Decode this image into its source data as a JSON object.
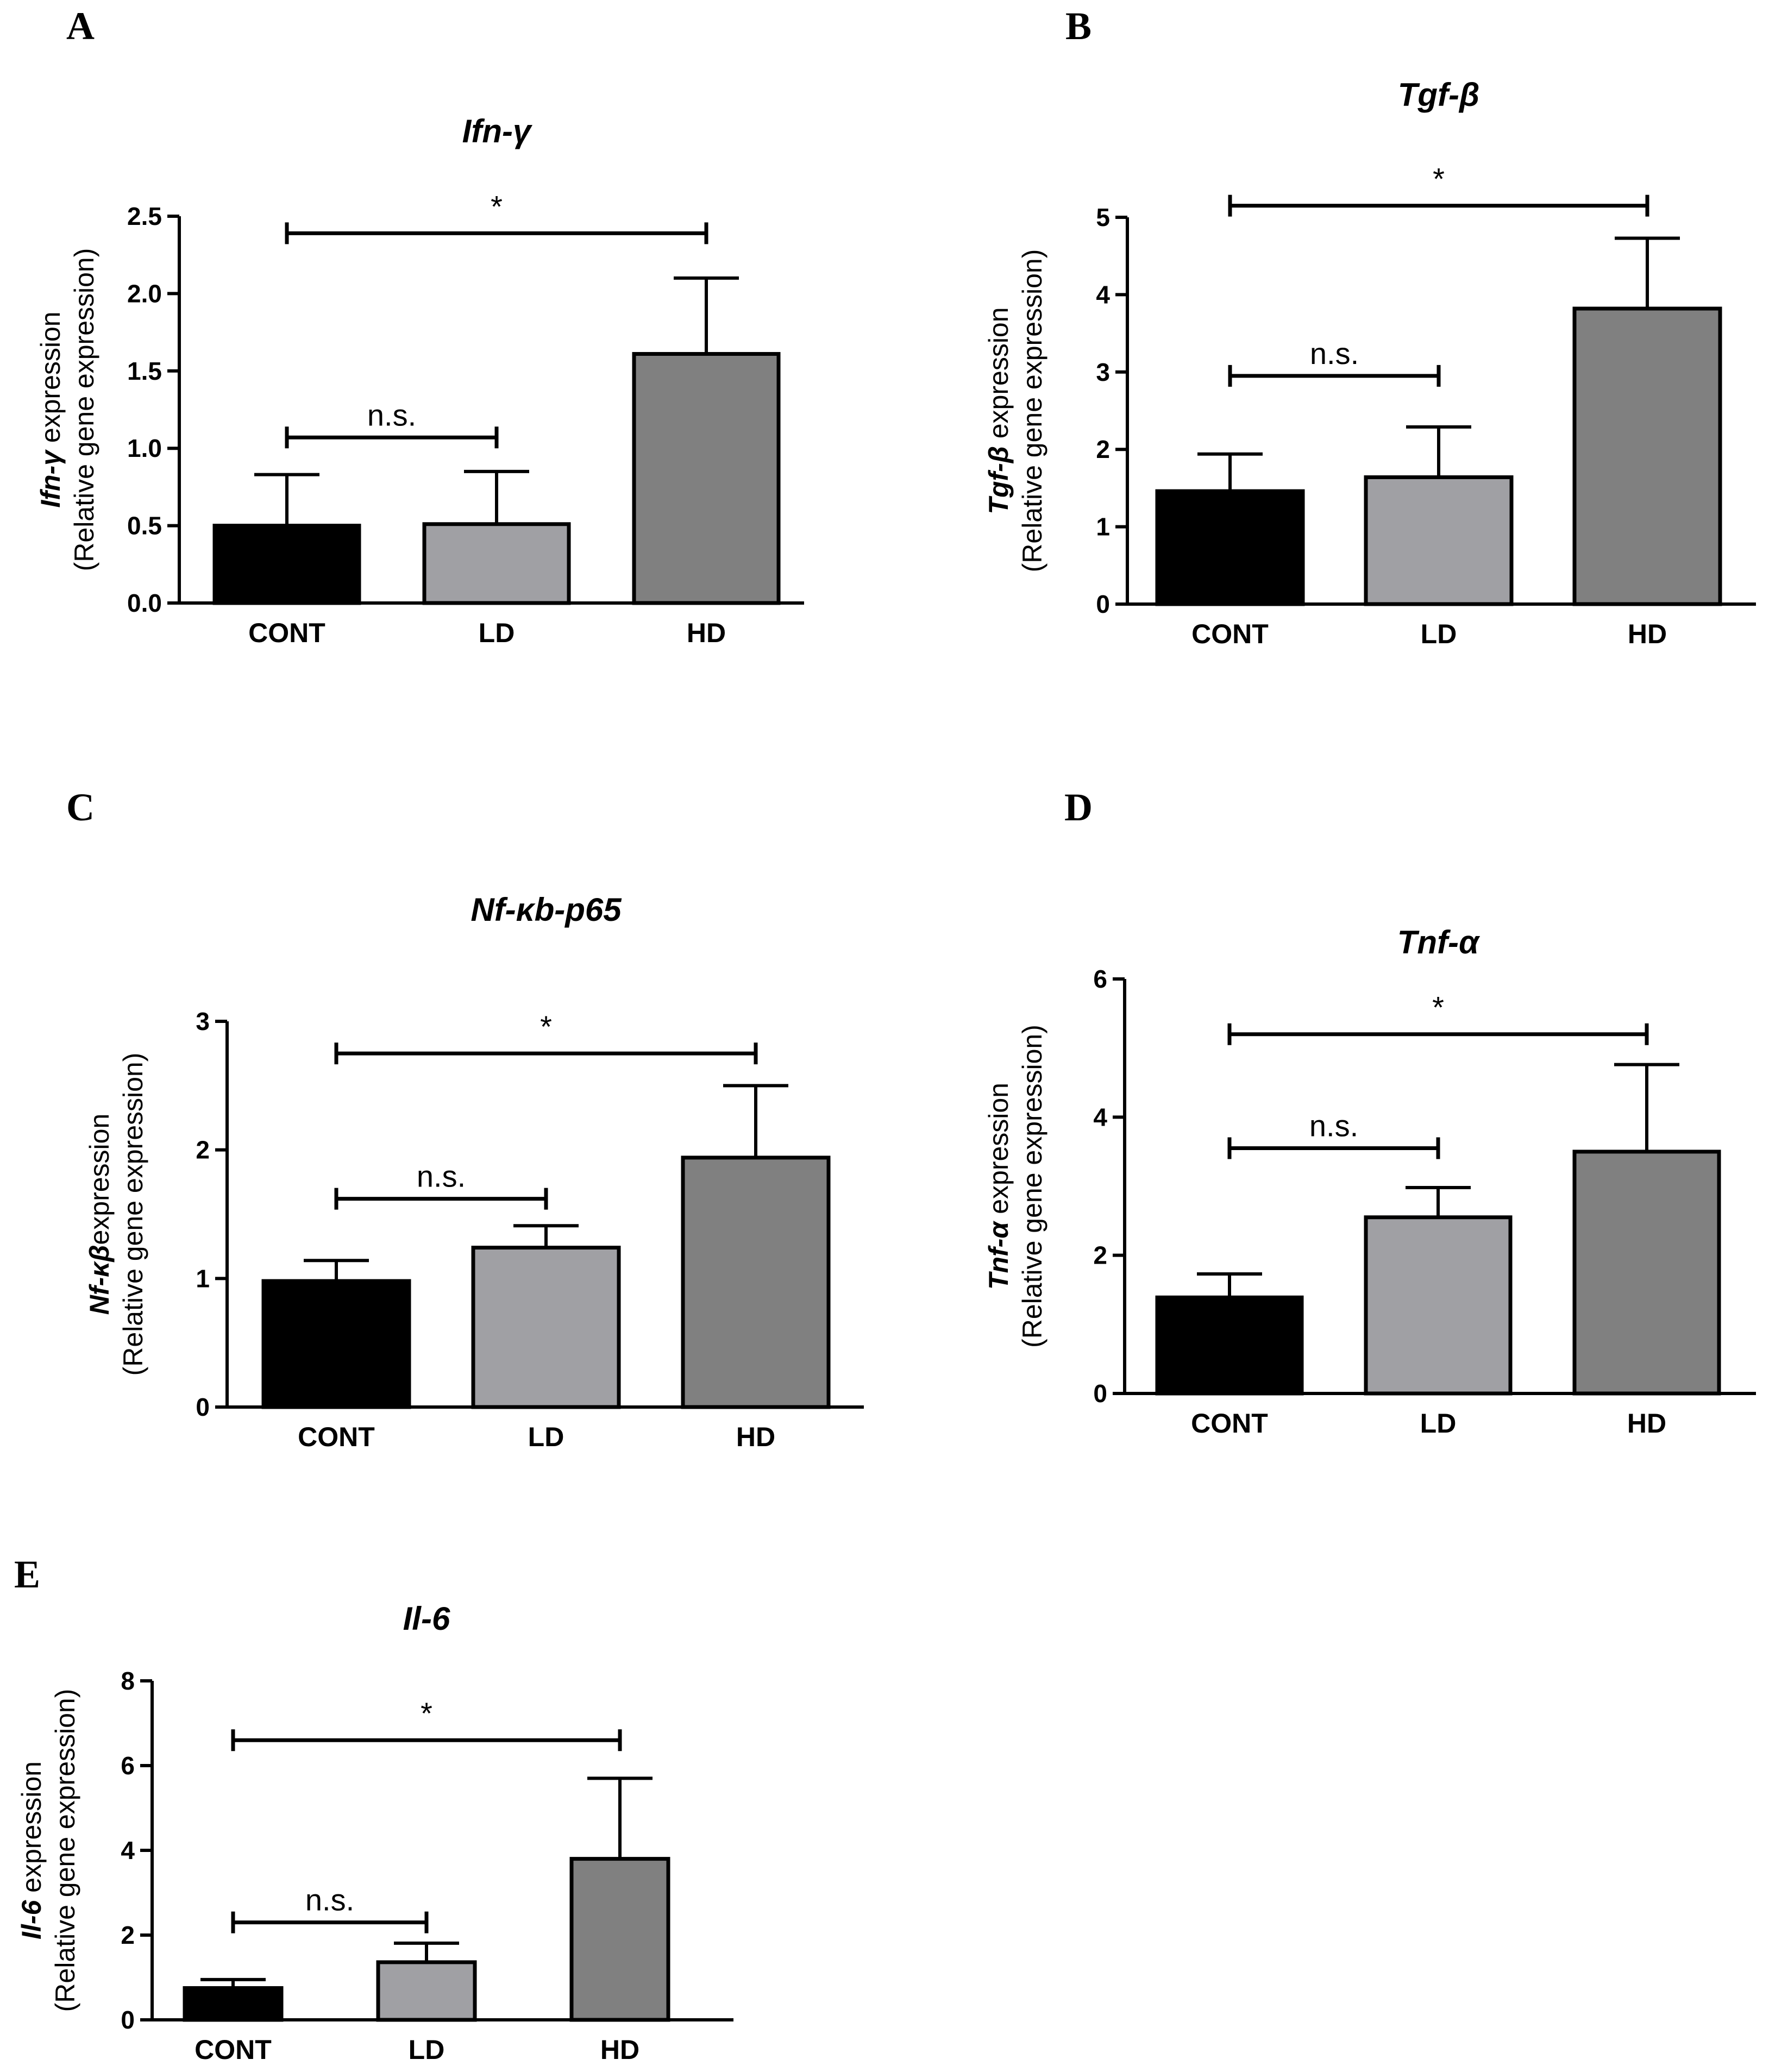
{
  "chart_data": [
    {
      "panel": "A",
      "type": "bar",
      "title": "Ifn-γ",
      "ylabel_gene": "Ifn-γ",
      "ylabel_suffix": " expression",
      "ylabel_line2": "(Relative gene expression)",
      "categories": [
        "CONT",
        "LD",
        "HD"
      ],
      "values": [
        0.5,
        0.51,
        1.61
      ],
      "errors": [
        0.33,
        0.34,
        0.49
      ],
      "ylim": [
        0,
        2.5
      ],
      "yticks": [
        "0.0",
        "0.5",
        "1.0",
        "1.5",
        "2.0",
        "2.5"
      ],
      "colors": [
        "#000000",
        "#a0a0a4",
        "#808080"
      ],
      "annotations": [
        {
          "label": "n.s.",
          "from": 0,
          "to": 1,
          "level": 1.07
        },
        {
          "label": "*",
          "from": 0,
          "to": 2,
          "level": 2.39
        }
      ]
    },
    {
      "panel": "B",
      "type": "bar",
      "title": "Tgf-β",
      "ylabel_gene": "Tgf-β",
      "ylabel_suffix": " expression",
      "ylabel_line2": "(Relative gene expression)",
      "categories": [
        "CONT",
        "LD",
        "HD"
      ],
      "values": [
        1.46,
        1.64,
        3.82
      ],
      "errors": [
        0.48,
        0.65,
        0.91
      ],
      "ylim": [
        0,
        5
      ],
      "yticks": [
        "0",
        "1",
        "2",
        "3",
        "4",
        "5"
      ],
      "colors": [
        "#000000",
        "#a0a0a4",
        "#808080"
      ],
      "annotations": [
        {
          "label": "n.s.",
          "from": 0,
          "to": 1,
          "level": 2.95
        },
        {
          "label": "*",
          "from": 0,
          "to": 2,
          "level": 5.15
        }
      ]
    },
    {
      "panel": "C",
      "type": "bar",
      "title": "Nf-κb-p65",
      "ylabel_gene": "Nf-κβ",
      "ylabel_suffix": "expression",
      "ylabel_line2": "(Relative gene expression)",
      "categories": [
        "CONT",
        "LD",
        "HD"
      ],
      "values": [
        0.98,
        1.24,
        1.94
      ],
      "errors": [
        0.16,
        0.17,
        0.56
      ],
      "ylim": [
        0,
        3
      ],
      "yticks": [
        "0",
        "1",
        "2",
        "3"
      ],
      "colors": [
        "#000000",
        "#a0a0a4",
        "#808080"
      ],
      "annotations": [
        {
          "label": "n.s.",
          "from": 0,
          "to": 1,
          "level": 1.62
        },
        {
          "label": "*",
          "from": 0,
          "to": 2,
          "level": 2.75
        }
      ]
    },
    {
      "panel": "D",
      "type": "bar",
      "title": "Tnf-α",
      "ylabel_gene": "Tnf-α",
      "ylabel_suffix": " expression",
      "ylabel_line2": "(Relative gene expression)",
      "categories": [
        "CONT",
        "LD",
        "HD"
      ],
      "values": [
        1.39,
        2.55,
        3.5
      ],
      "errors": [
        0.34,
        0.43,
        1.26
      ],
      "ylim": [
        0,
        6
      ],
      "yticks": [
        "0",
        "2",
        "4",
        "6"
      ],
      "colors": [
        "#000000",
        "#a0a0a4",
        "#808080"
      ],
      "annotations": [
        {
          "label": "n.s.",
          "from": 0,
          "to": 1,
          "level": 3.55
        },
        {
          "label": "*",
          "from": 0,
          "to": 2,
          "level": 5.2
        }
      ]
    },
    {
      "panel": "E",
      "type": "bar",
      "title": "Il-6",
      "ylabel_gene": "Il-6",
      "ylabel_suffix": " expression",
      "ylabel_line2": "(Relative gene expression)",
      "categories": [
        "CONT",
        "LD",
        "HD"
      ],
      "values": [
        0.75,
        1.36,
        3.8
      ],
      "errors": [
        0.2,
        0.45,
        1.9
      ],
      "ylim": [
        0,
        8
      ],
      "yticks": [
        "0",
        "2",
        "4",
        "6",
        "8"
      ],
      "colors": [
        "#000000",
        "#a0a0a4",
        "#808080"
      ],
      "annotations": [
        {
          "label": "n.s.",
          "from": 0,
          "to": 1,
          "level": 2.3
        },
        {
          "label": "*",
          "from": 0,
          "to": 2,
          "level": 6.6
        }
      ]
    }
  ]
}
